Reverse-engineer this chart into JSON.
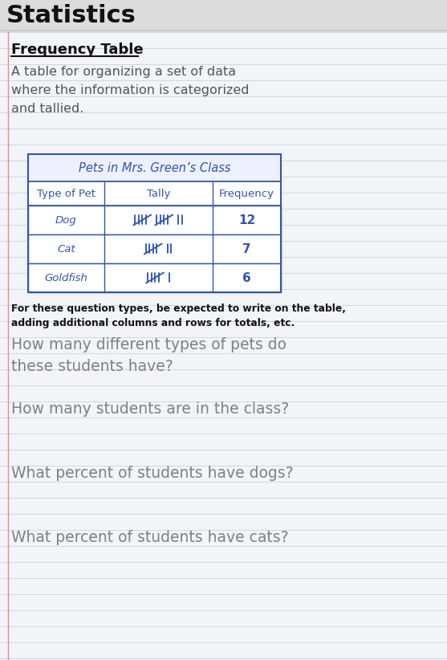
{
  "title": "Statistics",
  "section_title": "Frequency Table",
  "section_desc": "A table for organizing a set of data\nwhere the information is categorized\nand tallied.",
  "table_title": "Pets in Mrs. Green’s Class",
  "table_headers": [
    "Type of Pet",
    "Tally",
    "Frequency"
  ],
  "pet_names": [
    "Dog",
    "Cat",
    "Goldfish"
  ],
  "tally_counts": [
    12,
    7,
    6
  ],
  "frequencies": [
    "12",
    "7",
    "6"
  ],
  "note_bold": "For these question types, be expected to write on the table,\nadding additional columns and rows for totals, etc.",
  "questions": [
    "How many different types of pets do\nthese students have?",
    "How many students are in the class?",
    "What percent of students have dogs?",
    "What percent of students have cats?"
  ],
  "bg_color": "#f2f4f8",
  "notebook_line_color": "#c8d4e8",
  "margin_line_color": "#e09090",
  "title_bg": "#e0e0e0",
  "title_color": "#111111",
  "table_border_color": "#3355aa",
  "table_title_text_color": "#3355aa",
  "table_header_text_color": "#3355aa",
  "table_cell_text_color": "#3355aa",
  "table_tally_color": "#3355aa",
  "note_color": "#111111",
  "question_color": "#808080",
  "section_title_color": "#111111",
  "section_desc_color": "#555555"
}
